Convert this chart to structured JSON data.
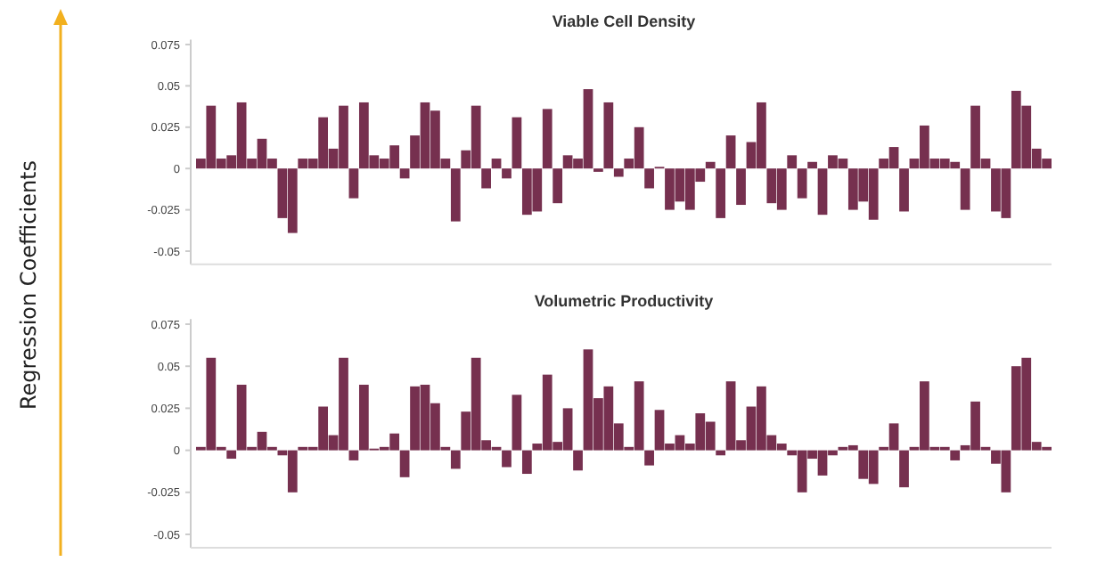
{
  "chart_data": [
    {
      "type": "bar",
      "title": "Viable Cell Density",
      "ylabel": "Regression Coefficients",
      "color": "#76304f",
      "ylim": [
        -0.058,
        0.078
      ],
      "yticks": [
        -0.05,
        -0.025,
        0,
        0.025,
        0.05,
        0.075
      ],
      "categories": [
        null,
        null,
        null,
        null,
        null,
        null,
        null,
        null,
        null,
        null,
        null,
        null,
        null,
        null,
        null,
        null,
        null,
        null,
        null,
        null,
        null,
        null,
        null,
        null,
        null,
        null,
        null,
        null,
        null,
        null,
        null,
        null,
        null,
        null,
        null,
        null,
        null,
        null,
        null,
        null,
        null,
        null,
        null,
        null,
        null,
        null,
        null,
        null,
        null,
        null,
        null,
        null,
        null,
        null,
        null,
        null,
        null,
        null,
        null,
        null,
        null,
        null,
        null,
        null,
        null,
        null,
        null,
        null,
        null,
        null,
        null,
        null,
        null,
        null,
        null,
        null,
        null,
        null,
        null,
        null,
        null,
        null,
        null,
        null
      ],
      "values": [
        0.006,
        0.038,
        0.006,
        0.008,
        0.04,
        0.006,
        0.018,
        0.006,
        -0.03,
        -0.039,
        0.006,
        0.006,
        0.031,
        0.012,
        0.038,
        -0.018,
        0.04,
        0.008,
        0.006,
        0.014,
        -0.006,
        0.02,
        0.04,
        0.035,
        0.006,
        -0.032,
        0.011,
        0.038,
        -0.012,
        0.006,
        -0.006,
        0.031,
        -0.028,
        -0.026,
        0.036,
        -0.021,
        0.008,
        0.006,
        0.048,
        -0.002,
        0.04,
        -0.005,
        0.006,
        0.025,
        -0.012,
        0.001,
        -0.025,
        -0.02,
        -0.025,
        -0.008,
        0.004,
        -0.03,
        0.02,
        -0.022,
        0.016,
        0.04,
        -0.021,
        -0.025,
        0.008,
        -0.018,
        0.004,
        -0.028,
        0.008,
        0.006,
        -0.025,
        -0.02,
        -0.031,
        0.006,
        0.013,
        -0.026,
        0.006,
        0.026,
        0.006,
        0.006,
        0.004,
        -0.025,
        0.038,
        0.006,
        -0.026,
        -0.03,
        0.047,
        0.038,
        0.012,
        0.006
      ]
    },
    {
      "type": "bar",
      "title": "Volumetric Productivity",
      "color": "#76304f",
      "ylim": [
        -0.058,
        0.078
      ],
      "yticks": [
        -0.05,
        -0.025,
        0,
        0.025,
        0.05,
        0.075
      ],
      "categories": [
        null,
        null,
        null,
        null,
        null,
        null,
        null,
        null,
        null,
        null,
        null,
        null,
        null,
        null,
        null,
        null,
        null,
        null,
        null,
        null,
        null,
        null,
        null,
        null,
        null,
        null,
        null,
        null,
        null,
        null,
        null,
        null,
        null,
        null,
        null,
        null,
        null,
        null,
        null,
        null,
        null,
        null,
        null,
        null,
        null,
        null,
        null,
        null,
        null,
        null,
        null,
        null,
        null,
        null,
        null,
        null,
        null,
        null,
        null,
        null,
        null,
        null,
        null,
        null,
        null,
        null,
        null,
        null,
        null,
        null,
        null,
        null,
        null,
        null,
        null,
        null,
        null,
        null,
        null,
        null,
        null,
        null,
        null,
        null
      ],
      "values": [
        0.002,
        0.055,
        0.002,
        -0.005,
        0.039,
        0.002,
        0.011,
        0.002,
        -0.003,
        -0.025,
        0.002,
        0.002,
        0.026,
        0.009,
        0.055,
        -0.006,
        0.039,
        0.001,
        0.002,
        0.01,
        -0.016,
        0.038,
        0.039,
        0.028,
        0.002,
        -0.011,
        0.023,
        0.055,
        0.006,
        0.002,
        -0.01,
        0.033,
        -0.014,
        0.004,
        0.045,
        0.005,
        0.025,
        -0.012,
        0.06,
        0.031,
        0.038,
        0.016,
        0.002,
        0.041,
        -0.009,
        0.024,
        0.004,
        0.009,
        0.004,
        0.022,
        0.017,
        -0.003,
        0.041,
        0.006,
        0.026,
        0.038,
        0.009,
        0.004,
        -0.003,
        -0.025,
        -0.005,
        -0.015,
        -0.003,
        0.002,
        0.003,
        -0.017,
        -0.02,
        0.002,
        0.016,
        -0.022,
        0.002,
        0.041,
        0.002,
        0.002,
        -0.006,
        0.003,
        0.029,
        0.002,
        -0.008,
        -0.025,
        0.05,
        0.055,
        0.005,
        0.002
      ]
    }
  ]
}
